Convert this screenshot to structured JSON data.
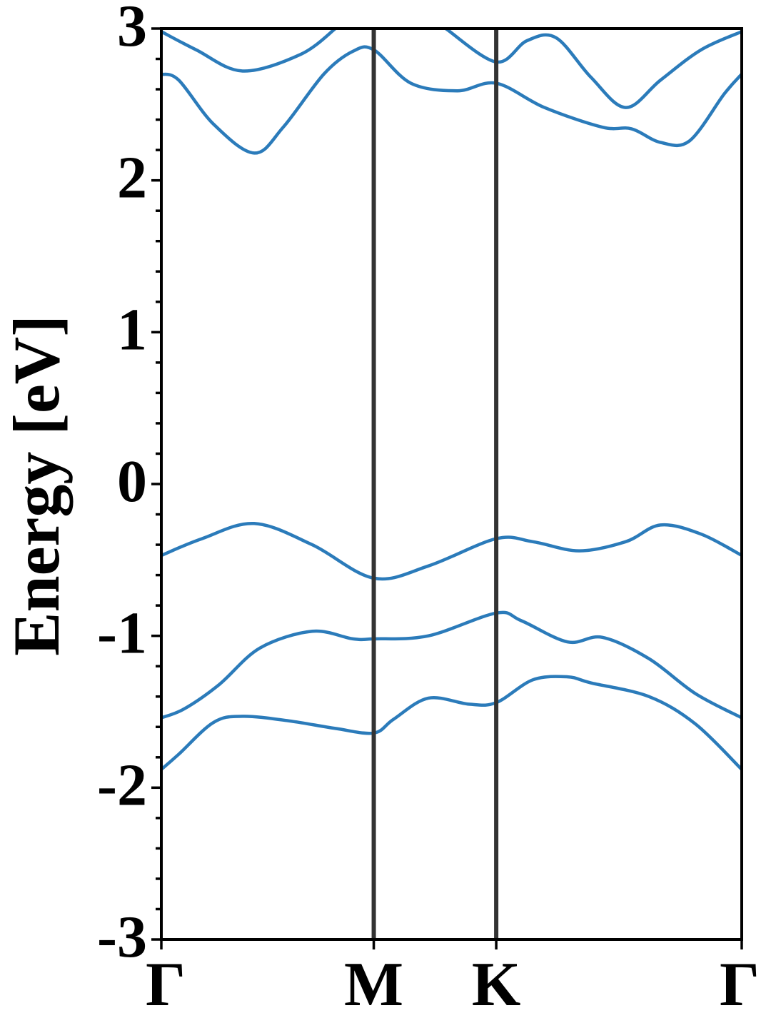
{
  "chart_data": {
    "type": "line",
    "title": "",
    "xlabel": "",
    "ylabel": "Energy [eV]",
    "ylim": [
      -3,
      3
    ],
    "xlim": [
      0,
      1
    ],
    "grid": false,
    "y_ticks": [
      -3,
      -2,
      -1,
      0,
      1,
      2,
      3
    ],
    "y_tick_labels": [
      "-3",
      "-2",
      "-1",
      "0",
      "1",
      "2",
      "3"
    ],
    "y_minor_step": 0.2,
    "high_symmetry_points": [
      {
        "label": "Γ",
        "x": 0.0
      },
      {
        "label": "M",
        "x": 0.366
      },
      {
        "label": "K",
        "x": 0.577
      },
      {
        "label": "Γ",
        "x": 1.0
      }
    ],
    "colors": {
      "bands": "#2b7bba",
      "symmetry_lines": "#333333",
      "axes": "#000000"
    },
    "series": [
      {
        "points": [
          [
            0.0,
            -1.88
          ],
          [
            0.03,
            -1.78
          ],
          [
            0.09,
            -1.57
          ],
          [
            0.14,
            -1.53
          ],
          [
            0.22,
            -1.56
          ],
          [
            0.3,
            -1.61
          ],
          [
            0.366,
            -1.64
          ],
          [
            0.4,
            -1.55
          ],
          [
            0.46,
            -1.41
          ],
          [
            0.53,
            -1.45
          ],
          [
            0.577,
            -1.44
          ],
          [
            0.64,
            -1.29
          ],
          [
            0.7,
            -1.27
          ],
          [
            0.74,
            -1.31
          ],
          [
            0.84,
            -1.4
          ],
          [
            0.92,
            -1.58
          ],
          [
            1.0,
            -1.88
          ]
        ]
      },
      {
        "points": [
          [
            0.0,
            -1.54
          ],
          [
            0.04,
            -1.48
          ],
          [
            0.1,
            -1.32
          ],
          [
            0.17,
            -1.08
          ],
          [
            0.26,
            -0.97
          ],
          [
            0.33,
            -1.02
          ],
          [
            0.366,
            -1.02
          ],
          [
            0.46,
            -1.0
          ],
          [
            0.577,
            -0.85
          ],
          [
            0.62,
            -0.9
          ],
          [
            0.7,
            -1.04
          ],
          [
            0.76,
            -1.01
          ],
          [
            0.84,
            -1.15
          ],
          [
            0.92,
            -1.38
          ],
          [
            1.0,
            -1.54
          ]
        ]
      },
      {
        "points": [
          [
            0.0,
            -0.47
          ],
          [
            0.07,
            -0.36
          ],
          [
            0.16,
            -0.26
          ],
          [
            0.26,
            -0.4
          ],
          [
            0.366,
            -0.62
          ],
          [
            0.46,
            -0.54
          ],
          [
            0.577,
            -0.36
          ],
          [
            0.64,
            -0.38
          ],
          [
            0.72,
            -0.44
          ],
          [
            0.8,
            -0.38
          ],
          [
            0.86,
            -0.27
          ],
          [
            0.93,
            -0.33
          ],
          [
            1.0,
            -0.47
          ]
        ]
      },
      {
        "points": [
          [
            0.0,
            2.7
          ],
          [
            0.03,
            2.66
          ],
          [
            0.09,
            2.37
          ],
          [
            0.16,
            2.18
          ],
          [
            0.21,
            2.35
          ],
          [
            0.28,
            2.7
          ],
          [
            0.33,
            2.85
          ],
          [
            0.366,
            2.86
          ],
          [
            0.43,
            2.64
          ],
          [
            0.51,
            2.59
          ],
          [
            0.577,
            2.64
          ],
          [
            0.66,
            2.48
          ],
          [
            0.76,
            2.35
          ],
          [
            0.81,
            2.34
          ],
          [
            0.86,
            2.25
          ],
          [
            0.91,
            2.26
          ],
          [
            0.97,
            2.57
          ],
          [
            1.0,
            2.7
          ]
        ]
      },
      {
        "points": [
          [
            0.0,
            2.98
          ],
          [
            0.06,
            2.86
          ],
          [
            0.14,
            2.72
          ],
          [
            0.24,
            2.83
          ],
          [
            0.3,
            3.0
          ]
        ]
      },
      {
        "points": [
          [
            0.49,
            3.0
          ],
          [
            0.577,
            2.78
          ],
          [
            0.63,
            2.92
          ],
          [
            0.68,
            2.94
          ],
          [
            0.74,
            2.68
          ],
          [
            0.8,
            2.48
          ],
          [
            0.86,
            2.66
          ],
          [
            0.93,
            2.86
          ],
          [
            1.0,
            2.98
          ]
        ]
      }
    ]
  }
}
